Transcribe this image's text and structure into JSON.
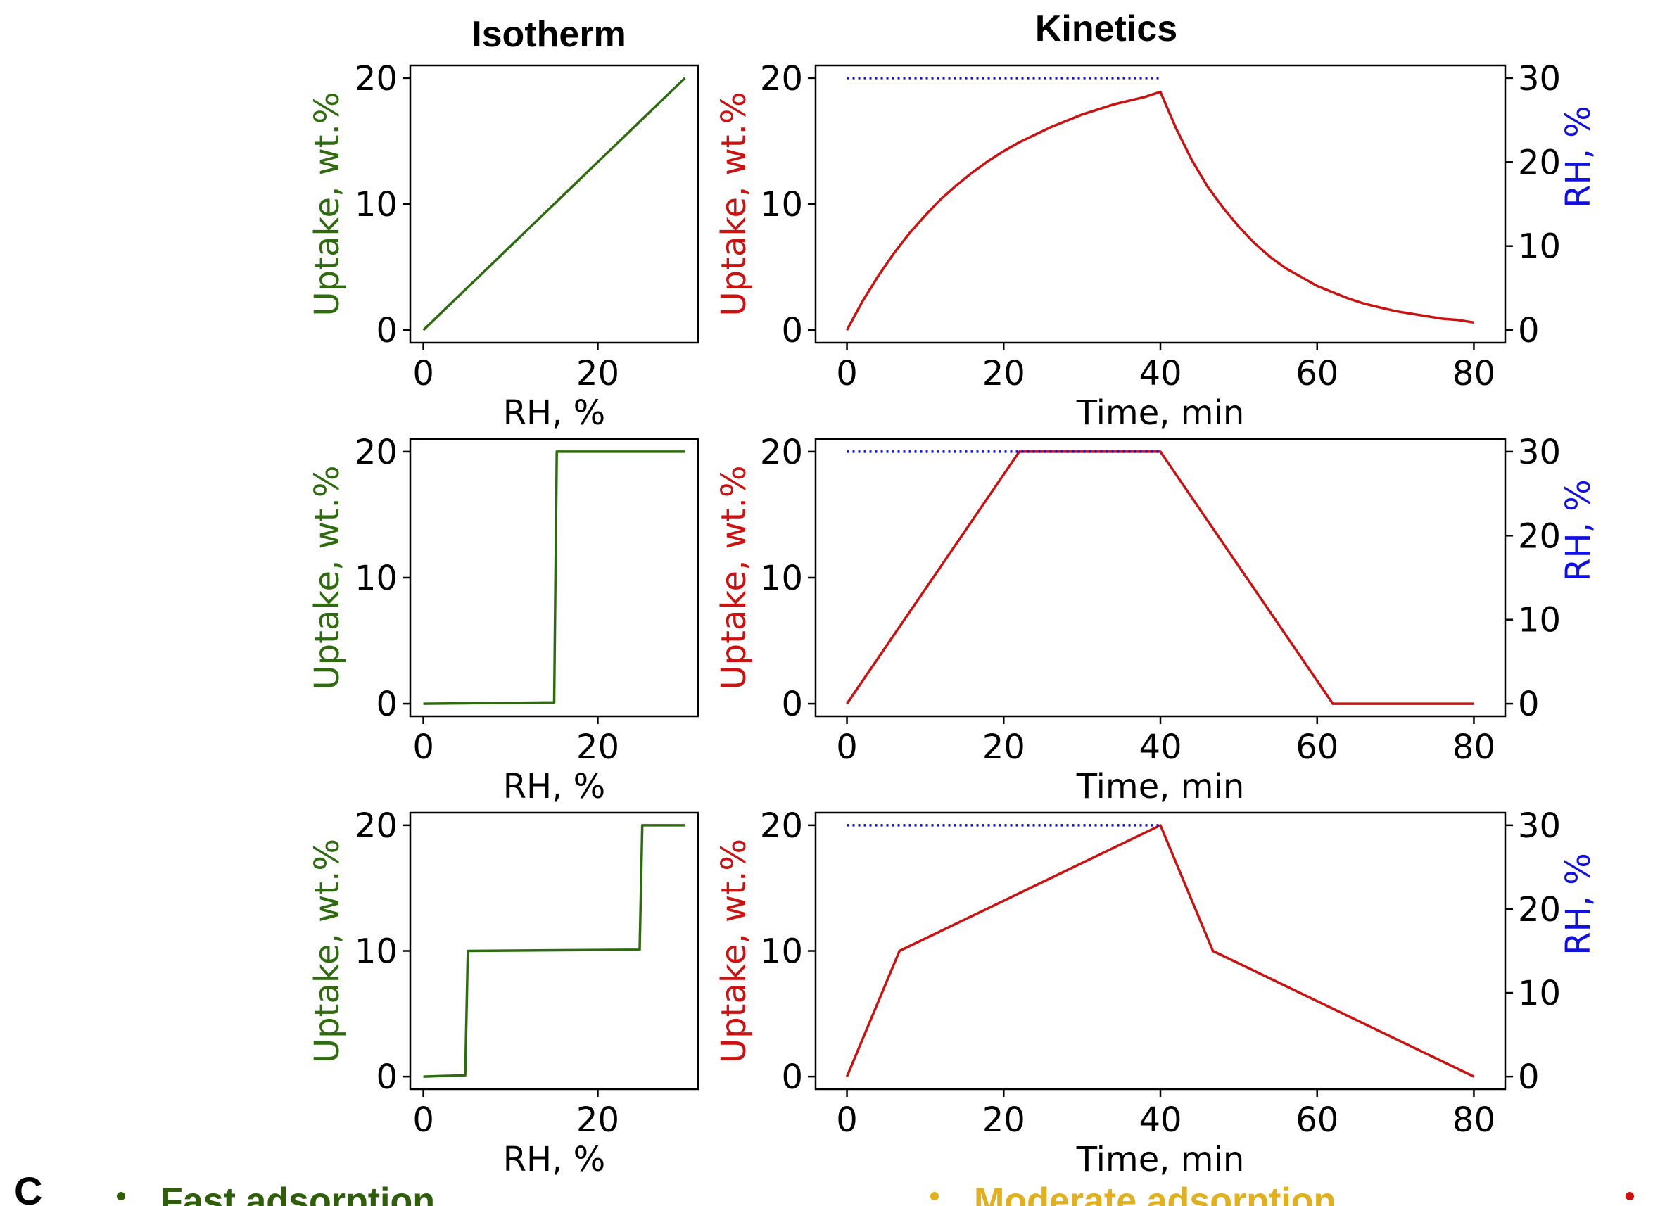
{
  "figure": {
    "column_titles": {
      "isotherm": "Isotherm",
      "kinetics": "Kinetics"
    },
    "panel_letter": "C",
    "legend": [
      {
        "label": "Fast adsorption",
        "color": "#2e5e0a"
      },
      {
        "label": "Moderate adsorption",
        "color": "#e0b020"
      },
      {
        "label": "",
        "color": "#cc1111"
      }
    ],
    "colors": {
      "isotherm": "#2e6b0f",
      "uptake": "#cc1111",
      "rh": "#1010e0"
    }
  },
  "chart_data": [
    {
      "type": "line",
      "panel": "isotherm",
      "row": 1,
      "xlabel": "RH, %",
      "ylabel": "Uptake, wt.%",
      "xlim": [
        -1.5,
        31.5
      ],
      "ylim": [
        -1,
        21
      ],
      "xticks": [
        0,
        20
      ],
      "yticks": [
        0,
        10,
        20
      ],
      "series": [
        {
          "x": [
            0,
            30
          ],
          "y": [
            0,
            20
          ]
        }
      ]
    },
    {
      "type": "line",
      "panel": "kinetics",
      "row": 1,
      "xlabel": "Time, min",
      "ylabel": "Uptake, wt.%",
      "y2label": "RH, %",
      "xlim": [
        -4,
        84
      ],
      "ylim": [
        -1,
        21
      ],
      "y2lim": [
        -1.5,
        31.5
      ],
      "xticks": [
        0,
        20,
        40,
        60,
        80
      ],
      "yticks": [
        0,
        10,
        20
      ],
      "y2ticks": [
        0,
        10,
        20,
        30
      ],
      "series": [
        {
          "axis": "left",
          "style": "solid",
          "x": [
            0,
            2,
            4,
            6,
            8,
            10,
            12,
            14,
            16,
            18,
            20,
            22,
            24,
            26,
            28,
            30,
            32,
            34,
            36,
            38,
            40,
            42,
            44,
            46,
            48,
            50,
            52,
            54,
            56,
            58,
            60,
            62,
            64,
            66,
            68,
            70,
            72,
            74,
            76,
            78,
            80
          ],
          "y": [
            0,
            2.3,
            4.3,
            6.1,
            7.7,
            9.1,
            10.4,
            11.5,
            12.5,
            13.4,
            14.2,
            14.9,
            15.5,
            16.1,
            16.6,
            17.1,
            17.5,
            17.9,
            18.2,
            18.5,
            18.9,
            16.0,
            13.5,
            11.4,
            9.7,
            8.2,
            6.9,
            5.8,
            4.9,
            4.2,
            3.5,
            3.0,
            2.5,
            2.1,
            1.8,
            1.5,
            1.3,
            1.1,
            0.9,
            0.8,
            0.6
          ]
        },
        {
          "axis": "right",
          "style": "dotted",
          "x": [
            0,
            40,
            40,
            80
          ],
          "y": [
            30,
            30,
            null,
            0
          ]
        }
      ]
    },
    {
      "type": "line",
      "panel": "isotherm",
      "row": 2,
      "xlabel": "RH, %",
      "ylabel": "Uptake, wt.%",
      "xlim": [
        -1.5,
        31.5
      ],
      "ylim": [
        -1,
        21
      ],
      "xticks": [
        0,
        20
      ],
      "yticks": [
        0,
        10,
        20
      ],
      "series": [
        {
          "x": [
            0,
            15,
            15.3,
            30
          ],
          "y": [
            0,
            0.1,
            20,
            20
          ]
        }
      ]
    },
    {
      "type": "line",
      "panel": "kinetics",
      "row": 2,
      "xlabel": "Time, min",
      "ylabel": "Uptake, wt.%",
      "y2label": "RH, %",
      "xlim": [
        -4,
        84
      ],
      "ylim": [
        -1,
        21
      ],
      "y2lim": [
        -1.5,
        31.5
      ],
      "xticks": [
        0,
        20,
        40,
        60,
        80
      ],
      "yticks": [
        0,
        10,
        20
      ],
      "y2ticks": [
        0,
        10,
        20,
        30
      ],
      "series": [
        {
          "axis": "left",
          "style": "solid",
          "x": [
            0,
            22,
            40,
            62,
            80
          ],
          "y": [
            0,
            20,
            20,
            0,
            0
          ]
        },
        {
          "axis": "right",
          "style": "dotted",
          "x": [
            0,
            40,
            40,
            80
          ],
          "y": [
            30,
            30,
            null,
            0
          ]
        }
      ]
    },
    {
      "type": "line",
      "panel": "isotherm",
      "row": 3,
      "xlabel": "RH, %",
      "ylabel": "Uptake, wt.%",
      "xlim": [
        -1.5,
        31.5
      ],
      "ylim": [
        -1,
        21
      ],
      "xticks": [
        0,
        20
      ],
      "yticks": [
        0,
        10,
        20
      ],
      "series": [
        {
          "x": [
            0,
            4.8,
            5.1,
            24.8,
            25.1,
            30
          ],
          "y": [
            0,
            0.1,
            10,
            10.1,
            20,
            20
          ]
        }
      ]
    },
    {
      "type": "line",
      "panel": "kinetics",
      "row": 3,
      "xlabel": "Time, min",
      "ylabel": "Uptake, wt.%",
      "y2label": "RH, %",
      "xlim": [
        -4,
        84
      ],
      "ylim": [
        -1,
        21
      ],
      "y2lim": [
        -1.5,
        31.5
      ],
      "xticks": [
        0,
        20,
        40,
        60,
        80
      ],
      "yticks": [
        0,
        10,
        20
      ],
      "y2ticks": [
        0,
        10,
        20,
        30
      ],
      "series": [
        {
          "axis": "left",
          "style": "solid",
          "x": [
            0,
            6.7,
            40,
            46.7,
            80
          ],
          "y": [
            0,
            10,
            20,
            10,
            0
          ]
        },
        {
          "axis": "right",
          "style": "dotted",
          "x": [
            0,
            40,
            40,
            80
          ],
          "y": [
            30,
            30,
            null,
            0
          ]
        }
      ]
    }
  ]
}
